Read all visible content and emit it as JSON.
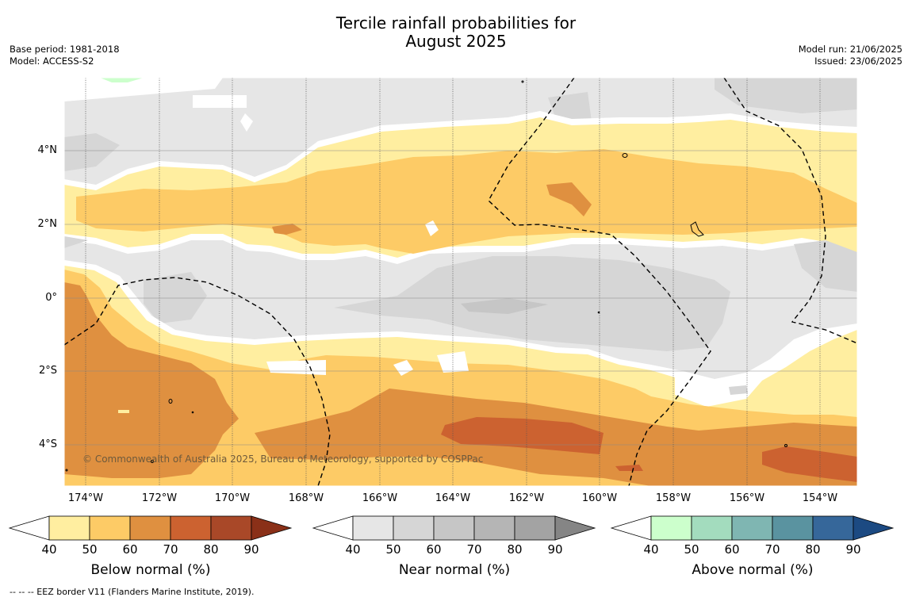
{
  "title": {
    "line1": "Tercile rainfall probabilities for",
    "line2": "August 2025"
  },
  "info": {
    "base_period": "Base period: 1981-2018",
    "model": "Model: ACCESS-S2",
    "model_run": "Model run: 21/06/2025",
    "issued": "Issued: 23/06/2025"
  },
  "map": {
    "lat_labels": [
      "4°N",
      "2°N",
      "0°",
      "2°S",
      "4°S"
    ],
    "lon_labels": [
      "174°W",
      "172°W",
      "170°W",
      "168°W",
      "166°W",
      "164°W",
      "162°W",
      "160°W",
      "158°W",
      "156°W",
      "154°W"
    ],
    "copyright": "© Commonwealth of Australia 2025, Bureau of Meteorology, supported by COSPPac",
    "legend_note": "-- -- -- EEZ border V11 (Flanders Marine Institute, 2019)."
  },
  "colorbars": [
    {
      "title": "Below normal (%)",
      "ticks": [
        "40",
        "50",
        "60",
        "70",
        "80",
        "90"
      ],
      "colors": [
        "#ffffff",
        "#ffeea0",
        "#fdcb66",
        "#df9040",
        "#cc6230",
        "#a94828",
        "#8a3018"
      ]
    },
    {
      "title": "Near normal (%)",
      "ticks": [
        "40",
        "50",
        "60",
        "70",
        "80",
        "90"
      ],
      "colors": [
        "#ffffff",
        "#e6e6e6",
        "#d6d6d6",
        "#c6c6c6",
        "#b5b5b5",
        "#a3a3a3",
        "#858585"
      ]
    },
    {
      "title": "Above normal (%)",
      "ticks": [
        "40",
        "50",
        "60",
        "70",
        "80",
        "90"
      ],
      "colors": [
        "#ffffff",
        "#ccffcc",
        "#a3dcbe",
        "#7fb6b2",
        "#5a93a0",
        "#36679a",
        "#1c4a82"
      ]
    }
  ]
}
